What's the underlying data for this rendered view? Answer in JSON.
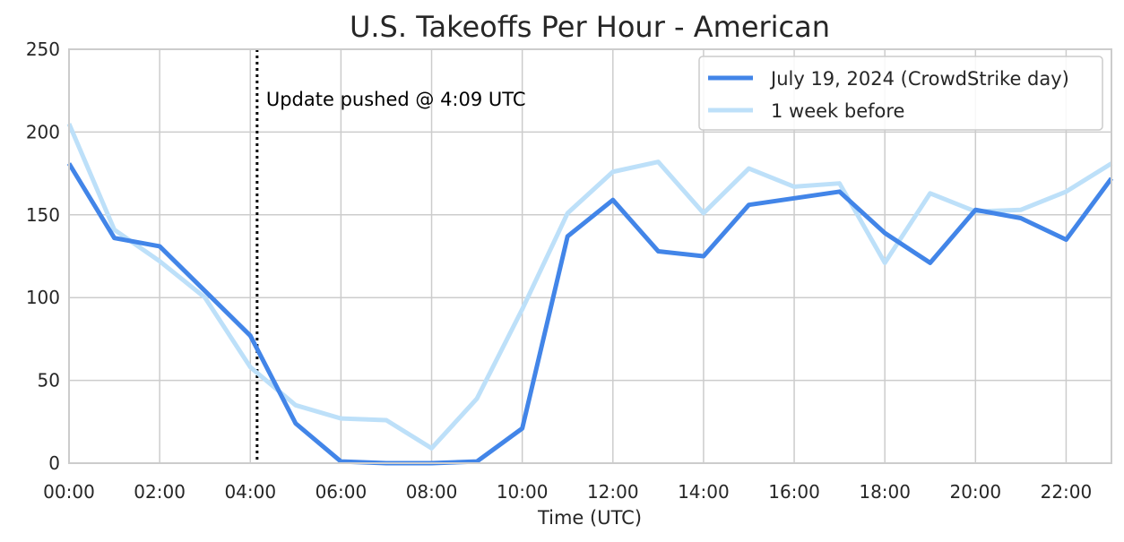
{
  "chart_data": {
    "type": "line",
    "title": "U.S. Takeoffs Per Hour - American",
    "xlabel": "Time (UTC)",
    "ylabel": "",
    "x": [
      0,
      1,
      2,
      3,
      4,
      5,
      6,
      7,
      8,
      9,
      10,
      11,
      12,
      13,
      14,
      15,
      16,
      17,
      18,
      19,
      20,
      21,
      22,
      23
    ],
    "xlim": [
      0,
      23
    ],
    "ylim": [
      0,
      250
    ],
    "xticks": [
      0,
      2,
      4,
      6,
      8,
      10,
      12,
      14,
      16,
      18,
      20,
      22
    ],
    "xtick_labels": [
      "00:00",
      "02:00",
      "04:00",
      "06:00",
      "08:00",
      "10:00",
      "12:00",
      "14:00",
      "16:00",
      "18:00",
      "20:00",
      "22:00"
    ],
    "yticks": [
      0,
      50,
      100,
      150,
      200,
      250
    ],
    "ytick_labels": [
      "0",
      "50",
      "100",
      "150",
      "200",
      "250"
    ],
    "grid": true,
    "legend_position": "top-right",
    "series": [
      {
        "name": "July 19, 2024 (CrowdStrike day)",
        "color": "#4285e8",
        "values": [
          181,
          136,
          131,
          104,
          77,
          24,
          1,
          0,
          0,
          1,
          21,
          137,
          159,
          128,
          125,
          156,
          160,
          164,
          139,
          121,
          153,
          148,
          135,
          172
        ]
      },
      {
        "name": "1 week before",
        "color": "#bde0f9",
        "values": [
          205,
          141,
          122,
          100,
          58,
          35,
          27,
          26,
          9,
          39,
          93,
          151,
          176,
          182,
          151,
          178,
          167,
          169,
          121,
          163,
          152,
          153,
          164,
          181
        ]
      }
    ],
    "annotations": [
      {
        "x": 4.15,
        "text": "Update pushed @ 4:09 UTC",
        "style": "dotted-vertical-line"
      }
    ]
  }
}
